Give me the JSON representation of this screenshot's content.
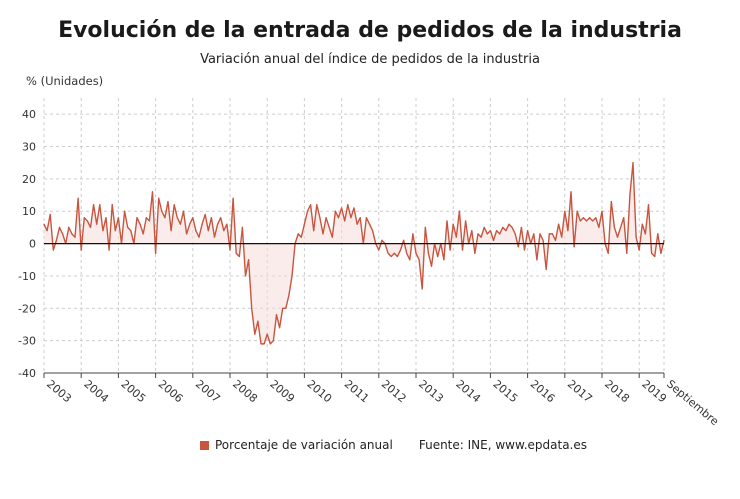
{
  "title": "Evolución de la entrada de pedidos de la industria",
  "subtitle": "Variación anual del índice de pedidos de la industria",
  "units": "% (Unidades)",
  "legend": {
    "label": "Porcentaje de variación anual"
  },
  "source": "Fuente: INE, www.epdata.es",
  "colors": {
    "line": "#c85540",
    "fill": "#f6dcd8",
    "zero": "#111111",
    "grid": "#cccccc"
  },
  "chart_data": {
    "type": "line",
    "title": "Evolución de la entrada de pedidos de la industria",
    "subtitle": "Variación anual del índice de pedidos de la industria",
    "ylabel": "% (Unidades)",
    "ylim": [
      -40,
      45
    ],
    "yticks": [
      -40,
      -30,
      -20,
      -10,
      0,
      10,
      20,
      30,
      40
    ],
    "x_start": "2003-01",
    "x_end": "2019-09",
    "xtick_labels": [
      "2003",
      "2004",
      "2005",
      "2006",
      "2007",
      "2008",
      "2009",
      "2010",
      "2011",
      "2012",
      "2013",
      "2014",
      "2015",
      "2016",
      "2017",
      "2018",
      "2019",
      "Septiembre"
    ],
    "grid": true,
    "series": [
      {
        "name": "Porcentaje de variación anual",
        "values": [
          6,
          4,
          9,
          -2,
          1,
          5,
          3,
          0,
          5,
          3,
          2,
          14,
          -2,
          8,
          7,
          5,
          12,
          6,
          12,
          4,
          8,
          -2,
          12,
          4,
          8,
          0,
          10,
          5,
          4,
          0,
          8,
          6,
          3,
          8,
          7,
          16,
          -3,
          14,
          10,
          8,
          13,
          4,
          12,
          8,
          6,
          10,
          3,
          6,
          8,
          4,
          2,
          6,
          9,
          4,
          8,
          2,
          6,
          8,
          4,
          6,
          -2,
          14,
          -3,
          -4,
          5,
          -10,
          -5,
          -20,
          -28,
          -24,
          -31,
          -31,
          -28,
          -31,
          -30,
          -22,
          -26,
          -20,
          -20,
          -16,
          -10,
          0,
          3,
          2,
          6,
          10,
          12,
          4,
          12,
          8,
          3,
          8,
          5,
          2,
          10,
          8,
          11,
          7,
          12,
          8,
          11,
          6,
          8,
          0,
          8,
          6,
          4,
          0,
          -2,
          1,
          0,
          -3,
          -4,
          -3,
          -4,
          -2,
          1,
          -3,
          -5,
          3,
          -3,
          -5,
          -14,
          5,
          -3,
          -7,
          0,
          -4,
          0,
          -5,
          7,
          -2,
          6,
          2,
          10,
          -2,
          7,
          0,
          4,
          -3,
          3,
          2,
          5,
          3,
          4,
          1,
          4,
          3,
          5,
          4,
          6,
          5,
          3,
          -1,
          5,
          -2,
          4,
          0,
          3,
          -5,
          3,
          1,
          -8,
          3,
          3,
          1,
          6,
          2,
          10,
          4,
          16,
          -1,
          10,
          7,
          8,
          7,
          8,
          7,
          8,
          5,
          10,
          0,
          -3,
          13,
          5,
          2,
          5,
          8,
          -3,
          15,
          25,
          2,
          -2,
          6,
          3,
          12,
          -3,
          -4,
          3,
          -3,
          1
        ]
      }
    ]
  }
}
